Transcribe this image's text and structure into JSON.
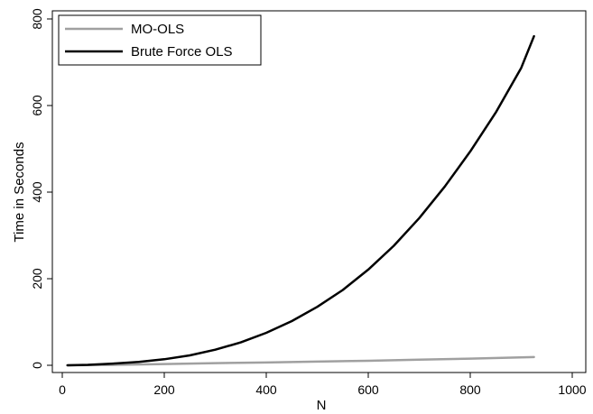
{
  "chart_data": {
    "type": "line",
    "xlabel": "N",
    "ylabel": "Time in Seconds",
    "xlim": [
      0,
      1000
    ],
    "ylim": [
      0,
      800
    ],
    "xticks": [
      0,
      200,
      400,
      600,
      800,
      1000
    ],
    "yticks": [
      0,
      200,
      400,
      600,
      800
    ],
    "grid": false,
    "legend_position": "top-left",
    "series": [
      {
        "name": "MO-OLS",
        "color": "#a0a0a0",
        "x": [
          10,
          100,
          200,
          300,
          400,
          500,
          600,
          700,
          800,
          925
        ],
        "y": [
          0,
          1,
          3,
          5,
          6.5,
          8.5,
          10.5,
          13,
          15.5,
          19
        ]
      },
      {
        "name": "Brute Force OLS",
        "color": "#000000",
        "x": [
          10,
          50,
          100,
          150,
          200,
          250,
          300,
          350,
          400,
          450,
          500,
          550,
          600,
          650,
          700,
          750,
          800,
          850,
          900,
          925
        ],
        "y": [
          0,
          1,
          4,
          8,
          14,
          23,
          36,
          53,
          75,
          102,
          135,
          174,
          221,
          276,
          340,
          413,
          494,
          584,
          687,
          760
        ]
      }
    ]
  }
}
